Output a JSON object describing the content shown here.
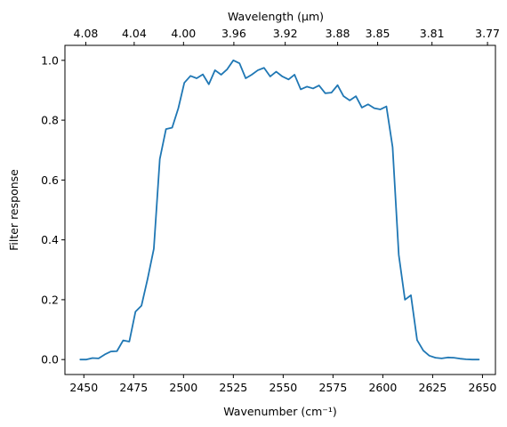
{
  "chart_data": {
    "type": "line",
    "xlabel": "Wavenumber (cm⁻¹)",
    "ylabel": "Filter response",
    "top_xlabel": "Wavelength (μm)",
    "xlim": [
      2440.5,
      2656.5
    ],
    "ylim": [
      -0.05,
      1.05
    ],
    "xticks": [
      2450,
      2475,
      2500,
      2525,
      2550,
      2575,
      2600,
      2625,
      2650
    ],
    "yticks": [
      0.0,
      0.2,
      0.4,
      0.6,
      0.8,
      1.0
    ],
    "ytick_labels": [
      "0.0",
      "0.2",
      "0.4",
      "0.6",
      "0.8",
      "1.0"
    ],
    "top_xticks": [
      {
        "label": "4.08",
        "wavenumber": 2450.98
      },
      {
        "label": "4.04",
        "wavenumber": 2475.25
      },
      {
        "label": "4.00",
        "wavenumber": 2500.0
      },
      {
        "label": "3.96",
        "wavenumber": 2525.25
      },
      {
        "label": "3.92",
        "wavenumber": 2551.02
      },
      {
        "label": "3.88",
        "wavenumber": 2577.32
      },
      {
        "label": "3.85",
        "wavenumber": 2597.4
      },
      {
        "label": "3.81",
        "wavenumber": 2624.67
      },
      {
        "label": "3.77",
        "wavenumber": 2652.52
      }
    ],
    "grid": false,
    "series": [
      {
        "color": "#1f77b4",
        "x": [
          2448.2,
          2451.3,
          2454.3,
          2457.4,
          2460.5,
          2463.6,
          2466.6,
          2469.7,
          2472.8,
          2475.9,
          2478.9,
          2482.0,
          2485.1,
          2488.1,
          2491.2,
          2494.3,
          2497.4,
          2500.4,
          2503.5,
          2506.6,
          2509.7,
          2512.7,
          2515.8,
          2518.9,
          2521.9,
          2525.0,
          2528.1,
          2531.2,
          2534.2,
          2537.3,
          2540.4,
          2543.5,
          2546.5,
          2549.6,
          2552.7,
          2555.7,
          2558.8,
          2561.9,
          2565.0,
          2568.0,
          2571.1,
          2574.2,
          2577.3,
          2580.3,
          2583.4,
          2586.5,
          2589.5,
          2592.6,
          2595.7,
          2598.8,
          2601.8,
          2604.9,
          2608.0,
          2611.1,
          2614.1,
          2617.2,
          2620.3,
          2623.3,
          2626.4,
          2629.5,
          2632.6,
          2635.6,
          2638.7,
          2641.8,
          2644.9,
          2648.2
        ],
        "y": [
          0.0,
          0.0,
          0.005,
          0.004,
          0.017,
          0.027,
          0.028,
          0.064,
          0.06,
          0.16,
          0.18,
          0.27,
          0.37,
          0.67,
          0.77,
          0.775,
          0.84,
          0.925,
          0.948,
          0.94,
          0.953,
          0.92,
          0.967,
          0.952,
          0.97,
          1.0,
          0.99,
          0.94,
          0.952,
          0.967,
          0.975,
          0.946,
          0.962,
          0.946,
          0.936,
          0.952,
          0.903,
          0.912,
          0.906,
          0.916,
          0.89,
          0.892,
          0.917,
          0.88,
          0.866,
          0.88,
          0.842,
          0.853,
          0.84,
          0.836,
          0.846,
          0.71,
          0.35,
          0.2,
          0.215,
          0.065,
          0.03,
          0.013,
          0.006,
          0.004,
          0.007,
          0.006,
          0.003,
          0.001,
          0.0,
          0.0
        ]
      }
    ]
  }
}
